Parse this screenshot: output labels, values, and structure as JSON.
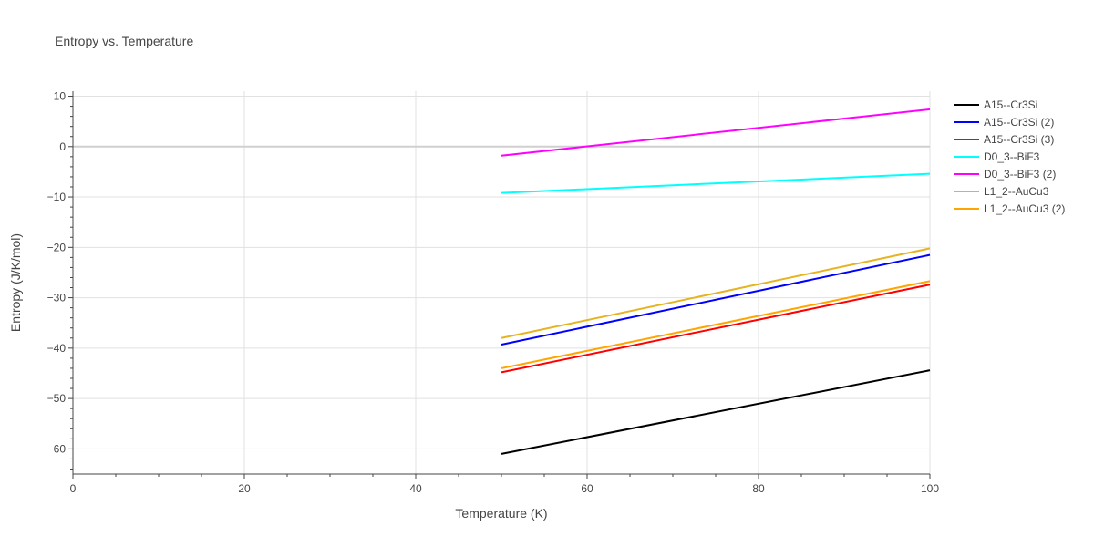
{
  "chart_data": {
    "type": "line",
    "title": "Entropy vs. Temperature",
    "xlabel": "Temperature (K)",
    "ylabel": "Entropy (J/K/mol)",
    "xlim": [
      0,
      100
    ],
    "ylim": [
      -65,
      11
    ],
    "x_ticks": [
      0,
      20,
      40,
      60,
      80,
      100
    ],
    "y_ticks": [
      -60,
      -50,
      -40,
      -30,
      -20,
      -10,
      0,
      10
    ],
    "grid": true,
    "legend_position": "right",
    "series": [
      {
        "name": "A15--Cr3Si",
        "color": "#000000",
        "x": [
          50,
          100
        ],
        "y": [
          -61.0,
          -44.4
        ]
      },
      {
        "name": "A15--Cr3Si (2)",
        "color": "#0000ff",
        "x": [
          50,
          100
        ],
        "y": [
          -39.3,
          -21.5
        ]
      },
      {
        "name": "A15--Cr3Si (3)",
        "color": "#ff0000",
        "x": [
          50,
          100
        ],
        "y": [
          -44.8,
          -27.4
        ]
      },
      {
        "name": "D0_3--BiF3",
        "color": "#00ffff",
        "x": [
          50,
          100
        ],
        "y": [
          -9.2,
          -5.4
        ]
      },
      {
        "name": "D0_3--BiF3 (2)",
        "color": "#ff00ff",
        "x": [
          50,
          100
        ],
        "y": [
          -1.8,
          7.4
        ]
      },
      {
        "name": "L1_2--AuCu3",
        "color": "#e6b422",
        "x": [
          50,
          100
        ],
        "y": [
          -38.0,
          -20.2
        ]
      },
      {
        "name": "L1_2--AuCu3 (2)",
        "color": "#ffa500",
        "x": [
          50,
          100
        ],
        "y": [
          -44.0,
          -26.7
        ]
      }
    ]
  }
}
